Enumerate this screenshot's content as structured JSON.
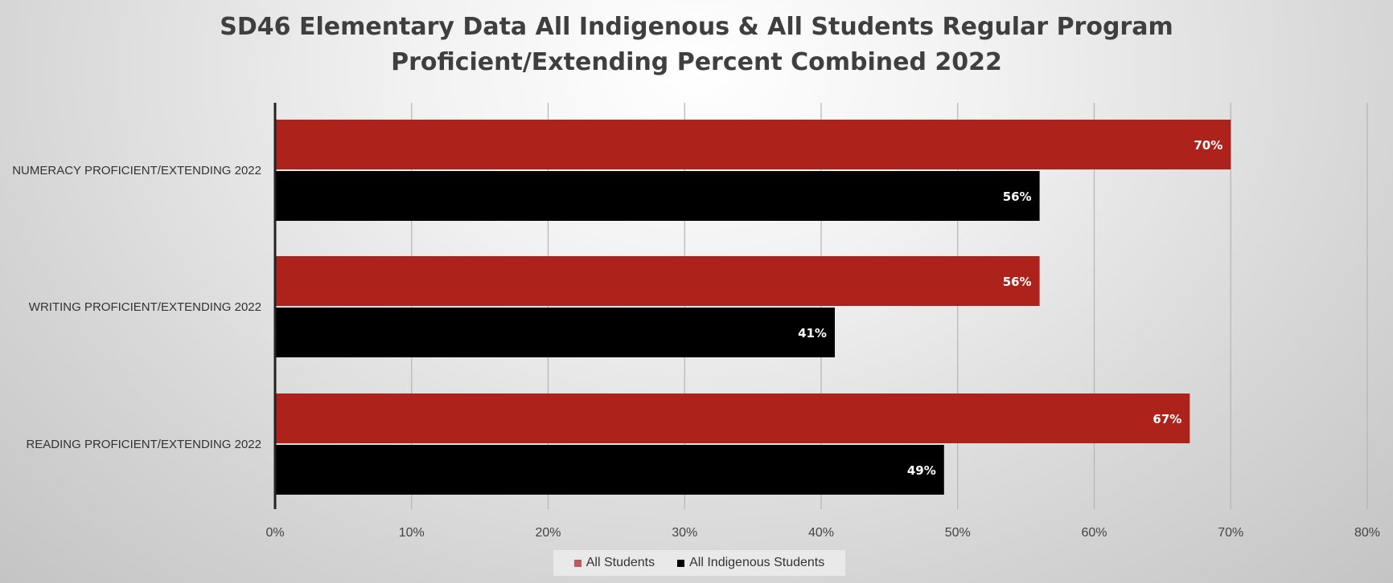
{
  "chart_data": {
    "type": "bar",
    "orientation": "horizontal",
    "title_lines": [
      "SD46 Elementary Data All Indigenous & All Students Regular Program",
      "Proficient/Extending Percent Combined 2022"
    ],
    "categories": [
      "NUMERACY PROFICIENT/EXTENDING 2022",
      "WRITING PROFICIENT/EXTENDING 2022",
      "READING PROFICIENT/EXTENDING 2022"
    ],
    "series": [
      {
        "name": "All Students",
        "color": "#ad231b",
        "values": [
          70,
          56,
          67
        ],
        "labels": [
          "70%",
          "56%",
          "67%"
        ]
      },
      {
        "name": "All Indigenous Students",
        "color": "#000000",
        "values": [
          56,
          41,
          49
        ],
        "labels": [
          "56%",
          "41%",
          "49%"
        ]
      }
    ],
    "xlim": [
      0,
      80
    ],
    "x_ticks": [
      0,
      10,
      20,
      30,
      40,
      50,
      60,
      70,
      80
    ],
    "x_tick_labels": [
      "0%",
      "10%",
      "20%",
      "30%",
      "40%",
      "50%",
      "60%",
      "70%",
      "80%"
    ],
    "grid": true,
    "legend_position": "bottom",
    "legend_swatch_colors": [
      "#c05a5a",
      "#000000"
    ]
  }
}
